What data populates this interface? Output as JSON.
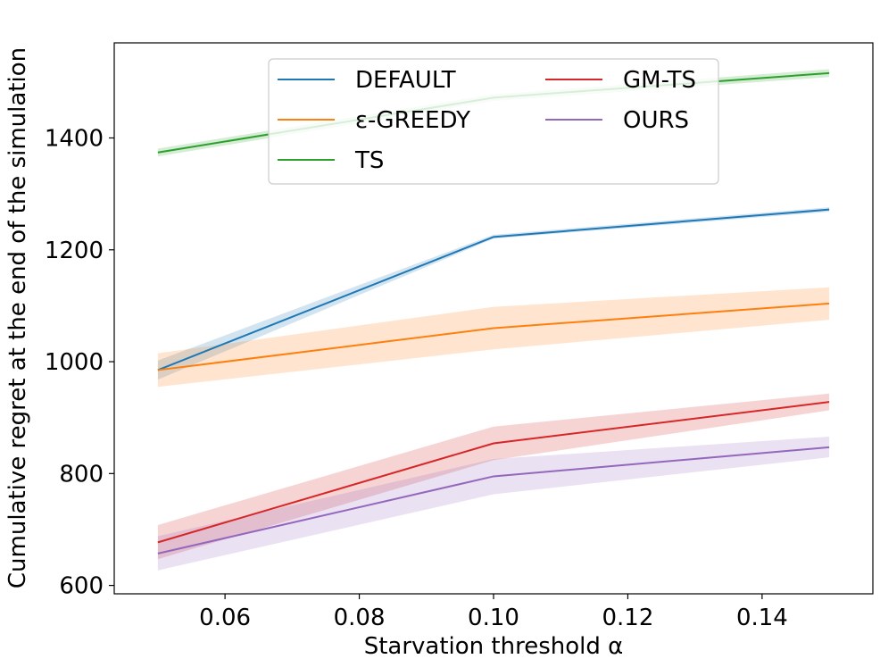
{
  "chart_data": {
    "type": "line",
    "title": "",
    "xlabel": "Starvation threshold α",
    "ylabel": "Cumulative regret at the end of the simulation",
    "x": [
      0.05,
      0.1,
      0.15
    ],
    "xlim": [
      0.0435,
      0.1565
    ],
    "ylim": [
      585,
      1570
    ],
    "xticks": [
      0.06,
      0.08,
      0.1,
      0.12,
      0.14
    ],
    "xtick_labels": [
      "0.06",
      "0.08",
      "0.10",
      "0.12",
      "0.14"
    ],
    "yticks": [
      600,
      800,
      1000,
      1200,
      1400
    ],
    "ytick_labels": [
      "600",
      "800",
      "1000",
      "1200",
      "1400"
    ],
    "grid": false,
    "legend_placement": "top-center",
    "legend_columns": 2,
    "series": [
      {
        "name": "DEFAULT",
        "color": "#1f77b4",
        "values": [
          985,
          1223,
          1272
        ],
        "lower": [
          968,
          1220,
          1268
        ],
        "upper": [
          1002,
          1227,
          1276
        ]
      },
      {
        "name": "ε-GREEDY",
        "color": "#ff7f0e",
        "values": [
          985,
          1060,
          1104
        ],
        "lower": [
          955,
          1022,
          1075
        ],
        "upper": [
          1015,
          1098,
          1133
        ]
      },
      {
        "name": "TS",
        "color": "#2ca02c",
        "values": [
          1374,
          1472,
          1516
        ],
        "lower": [
          1367,
          1466,
          1509
        ],
        "upper": [
          1381,
          1478,
          1523
        ]
      },
      {
        "name": "GM-TS",
        "color": "#d62728",
        "values": [
          677,
          854,
          928
        ],
        "lower": [
          647,
          824,
          913
        ],
        "upper": [
          708,
          884,
          943
        ]
      },
      {
        "name": "OURS",
        "color": "#9467bd",
        "values": [
          657,
          795,
          847
        ],
        "lower": [
          627,
          763,
          829
        ],
        "upper": [
          688,
          826,
          866
        ]
      }
    ]
  }
}
